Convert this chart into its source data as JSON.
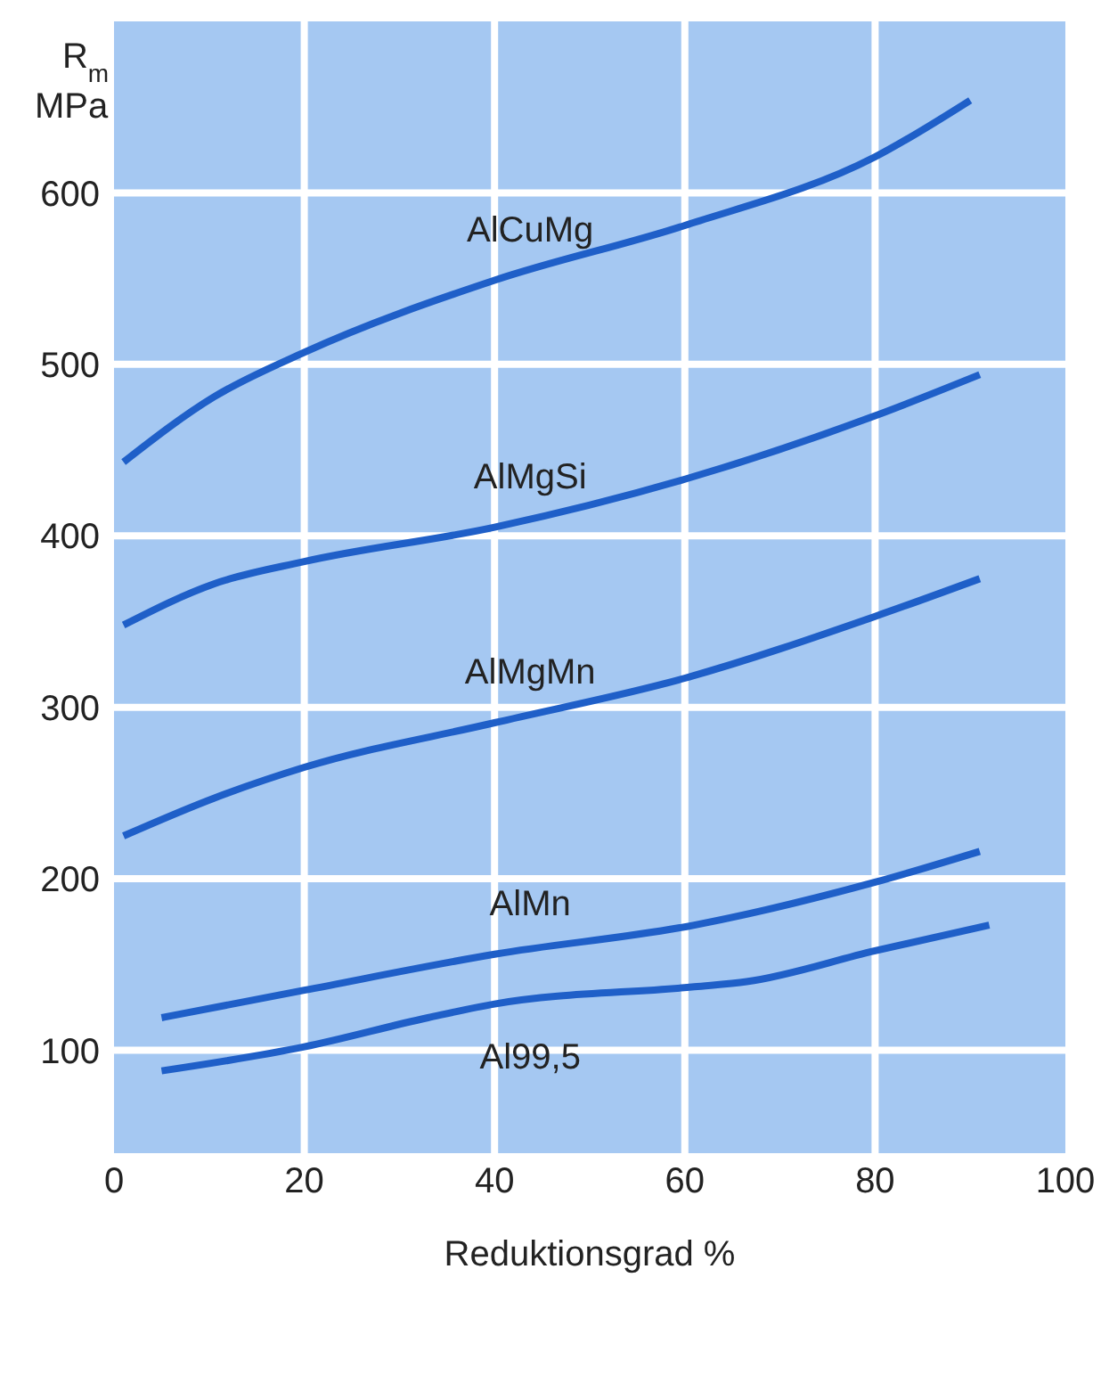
{
  "chart_data": {
    "type": "line",
    "xlabel": "Reduktionsgrad %",
    "ylabel": "R$_{m}$ MPa",
    "xlim": [
      0,
      100
    ],
    "xticks": [
      0,
      20,
      40,
      60,
      80,
      100
    ],
    "ylim": [
      40,
      700
    ],
    "yticks": [
      100,
      200,
      300,
      400,
      500,
      600
    ],
    "grid": true,
    "legend": false,
    "marker": "none",
    "line_style": "solid",
    "series": [
      {
        "name": "AlCuMg",
        "color": "#1f5fc8",
        "x": [
          1,
          10.5,
          20,
          40,
          60,
          80,
          90
        ],
        "values": [
          443,
          481,
          507,
          549,
          581,
          621,
          654
        ]
      },
      {
        "name": "AlMgSi",
        "color": "#1f5fc8",
        "x": [
          1,
          10.5,
          20,
          40,
          60,
          80,
          91
        ],
        "values": [
          348,
          372,
          385,
          405,
          433,
          470,
          494
        ]
      },
      {
        "name": "AlMgMn",
        "color": "#1f5fc8",
        "x": [
          1,
          10.5,
          20,
          40,
          60,
          80,
          91
        ],
        "values": [
          225,
          247,
          265,
          291,
          317,
          353,
          375
        ]
      },
      {
        "name": "AlMn",
        "color": "#1f5fc8",
        "x": [
          5,
          20,
          40,
          61,
          80,
          91
        ],
        "values": [
          119,
          135,
          156,
          173,
          198,
          216
        ]
      },
      {
        "name": "Al99,5",
        "color": "#1f5fc8",
        "x": [
          5,
          20,
          33,
          40,
          61,
          66.5,
          80,
          92
        ],
        "values": [
          88,
          102,
          119,
          127,
          137,
          140,
          158,
          173
        ]
      }
    ]
  }
}
